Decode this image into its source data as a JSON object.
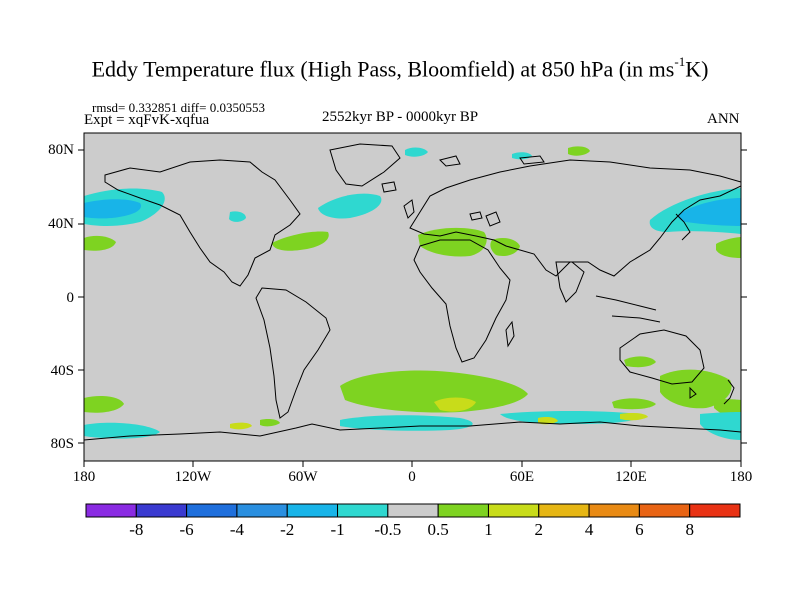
{
  "title_main": "Eddy Temperature flux (High Pass, Bloomfield) at 850 hPa (in ms",
  "title_sup": "-1",
  "title_end": "K)",
  "stats": "rmsd= 0.332851 diff= 0.0350553",
  "experiment": "Expt = xqFvK-xqfua",
  "period": "2552kyr BP - 0000kyr BP",
  "season": "ANN",
  "lat_labels": [
    "80N",
    "40N",
    "0",
    "40S",
    "80S"
  ],
  "lon_labels": [
    "180",
    "120W",
    "60W",
    "0",
    "60E",
    "120E",
    "180"
  ],
  "colorbar": {
    "labels": [
      "-8",
      "-6",
      "-4",
      "-2",
      "-1",
      "-0.5",
      "0.5",
      "1",
      "2",
      "4",
      "6",
      "8"
    ],
    "colors": [
      "#8a2be2",
      "#3a3ad0",
      "#1f6fdc",
      "#2a8fe0",
      "#18b4e8",
      "#2fd8d0",
      "#cccccc",
      "#7ed321",
      "#c8dc1a",
      "#e6b614",
      "#e88a14",
      "#e86414",
      "#e83214"
    ]
  },
  "colors": {
    "land_fill": "#cccccc",
    "coast": "#000000",
    "positive_light": "#7ed321",
    "positive_mid": "#c8dc1a",
    "negative_light": "#2fd8d0",
    "negative_mid": "#18b4e8",
    "negative_strong": "#2a8fe0"
  }
}
